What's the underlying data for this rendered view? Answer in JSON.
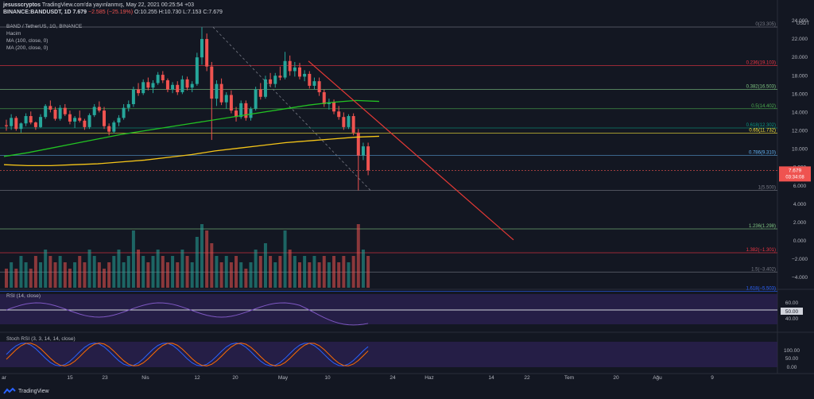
{
  "header": {
    "line1_user": "jesusscryptos",
    "line1_text": "TradingView.com'da yayınlanmış, May 22, 2021 00:25:54 +03",
    "symbol": "BINANCE:BANDUSDT, 1D",
    "last": "7.679",
    "change": "−2.585 (−25.19%)",
    "ohlc": "O:10.255 H:10.730 L:7.153 C:7.679"
  },
  "legend": {
    "pair": "BAND / TetherUS, 1G, BINANCE",
    "volume": "Hacim",
    "ma100": "MA (100, close, 0)",
    "ma200": "MA (200, close, 0)"
  },
  "price_axis": {
    "currency": "USDT",
    "ticks": [
      "24.000",
      "22.000",
      "20.000",
      "18.000",
      "16.000",
      "14.000",
      "12.000",
      "10.000",
      "8.000",
      "6.000",
      "4.000",
      "2.000",
      "0.000",
      "−2.000",
      "−4.000"
    ],
    "last_price_label": "7.679",
    "countdown": "03:34:08"
  },
  "fib_labels": [
    {
      "text": "0(23.305)",
      "value": 23.305,
      "color": "#787b86"
    },
    {
      "text": "0.236(19.103)",
      "value": 19.103,
      "color": "#f23645"
    },
    {
      "text": "0.382(16.503)",
      "value": 16.503,
      "color": "#81c784"
    },
    {
      "text": "0.5(14.402)",
      "value": 14.402,
      "color": "#4caf50"
    },
    {
      "text": "0.618(12.302)",
      "value": 12.302,
      "color": "#089981"
    },
    {
      "text": "0.65(11.732)",
      "value": 11.732,
      "color": "#ffeb3b"
    },
    {
      "text": "0.786(9.310)",
      "value": 9.31,
      "color": "#64b5f6"
    },
    {
      "text": "1(5.500)",
      "value": 5.5,
      "color": "#787b86"
    },
    {
      "text": "1.236(1.298)",
      "value": 1.298,
      "color": "#81c784"
    },
    {
      "text": "1.382(−1.301)",
      "value": -1.301,
      "color": "#f23645"
    },
    {
      "text": "1.5(−3.402)",
      "value": -3.402,
      "color": "#787b86"
    },
    {
      "text": "1.618(−5.503)",
      "value": -5.503,
      "color": "#2962ff"
    }
  ],
  "rsi": {
    "label": "RSI (14, close)",
    "ticks": [
      "60.00",
      "40.00"
    ],
    "current": "50.00"
  },
  "stoch": {
    "label": "Stoch RSI (3, 3, 14, 14, close)",
    "ticks": [
      "100.00",
      "50.00",
      "0.00"
    ]
  },
  "time_axis": [
    "ar",
    "15",
    "23",
    "Nis",
    "12",
    "20",
    "May",
    "10",
    "24",
    "Haz",
    "14",
    "22",
    "Tem",
    "20",
    "Ağu",
    "9"
  ],
  "footer": {
    "brand": "TradingView"
  },
  "colors": {
    "bg": "#131722",
    "up": "#26a69a",
    "down": "#ef5350",
    "ma100": "#22c322",
    "ma200": "#f5c518",
    "trendline": "#e53935",
    "rsi_line": "#7e57c2",
    "rsi_band": "#2a2150"
  },
  "chart_data": {
    "type": "candlestick",
    "title": "BAND / TetherUS, 1G, BINANCE",
    "ylim": [
      -5.5,
      24
    ],
    "candles": [
      [
        12.6,
        13.2,
        12.0,
        12.5
      ],
      [
        12.5,
        13.8,
        12.1,
        13.4
      ],
      [
        13.4,
        13.6,
        12.0,
        12.2
      ],
      [
        12.2,
        12.9,
        11.8,
        12.8
      ],
      [
        12.8,
        13.9,
        12.5,
        13.6
      ],
      [
        13.6,
        14.1,
        12.7,
        12.9
      ],
      [
        12.9,
        13.0,
        12.1,
        12.4
      ],
      [
        12.4,
        13.8,
        12.3,
        13.5
      ],
      [
        13.5,
        14.9,
        13.3,
        14.7
      ],
      [
        14.7,
        15.3,
        14.0,
        14.3
      ],
      [
        14.3,
        14.6,
        13.1,
        13.3
      ],
      [
        13.3,
        14.8,
        13.1,
        14.5
      ],
      [
        14.5,
        14.9,
        13.6,
        13.8
      ],
      [
        13.8,
        14.2,
        12.7,
        13.0
      ],
      [
        13.0,
        13.6,
        12.3,
        13.4
      ],
      [
        13.4,
        14.2,
        12.9,
        13.1
      ],
      [
        13.1,
        13.3,
        12.1,
        12.4
      ],
      [
        12.4,
        13.9,
        12.2,
        13.7
      ],
      [
        13.7,
        14.9,
        13.5,
        14.6
      ],
      [
        14.6,
        15.2,
        14.0,
        14.2
      ],
      [
        14.2,
        14.6,
        12.2,
        12.5
      ],
      [
        12.5,
        12.8,
        11.5,
        11.9
      ],
      [
        11.9,
        13.1,
        11.7,
        12.9
      ],
      [
        12.9,
        13.7,
        12.5,
        13.4
      ],
      [
        13.4,
        14.9,
        13.2,
        14.5
      ],
      [
        14.5,
        15.3,
        14.1,
        14.9
      ],
      [
        14.9,
        16.8,
        14.6,
        16.5
      ],
      [
        16.5,
        17.2,
        15.8,
        16.1
      ],
      [
        16.1,
        17.6,
        15.9,
        17.3
      ],
      [
        17.3,
        17.8,
        16.4,
        16.7
      ],
      [
        16.7,
        17.5,
        16.1,
        17.2
      ],
      [
        17.2,
        18.4,
        17.0,
        18.1
      ],
      [
        18.1,
        18.5,
        17.2,
        17.5
      ],
      [
        17.5,
        17.7,
        16.2,
        16.5
      ],
      [
        16.5,
        17.3,
        16.1,
        17.0
      ],
      [
        17.0,
        17.4,
        15.9,
        16.2
      ],
      [
        16.2,
        18.0,
        16.0,
        17.6
      ],
      [
        17.6,
        17.9,
        16.4,
        16.7
      ],
      [
        16.7,
        17.4,
        16.2,
        17.1
      ],
      [
        17.1,
        20.5,
        16.9,
        20.0
      ],
      [
        20.0,
        23.3,
        19.2,
        22.0
      ],
      [
        22.0,
        22.6,
        18.5,
        19.0
      ],
      [
        19.0,
        19.5,
        11.0,
        15.5
      ],
      [
        15.5,
        17.5,
        14.7,
        17.1
      ],
      [
        17.1,
        17.7,
        14.8,
        15.1
      ],
      [
        15.1,
        16.2,
        14.4,
        15.9
      ],
      [
        15.9,
        16.4,
        13.9,
        14.2
      ],
      [
        14.2,
        14.6,
        13.0,
        13.5
      ],
      [
        13.5,
        15.3,
        13.3,
        15.0
      ],
      [
        15.0,
        15.3,
        13.1,
        13.4
      ],
      [
        13.4,
        14.6,
        13.1,
        14.4
      ],
      [
        14.4,
        16.8,
        14.2,
        16.5
      ],
      [
        16.5,
        17.2,
        15.4,
        15.7
      ],
      [
        15.7,
        18.0,
        15.5,
        17.6
      ],
      [
        17.6,
        18.3,
        16.8,
        17.1
      ],
      [
        17.1,
        18.3,
        16.7,
        18.0
      ],
      [
        18.0,
        19.0,
        17.5,
        17.8
      ],
      [
        17.8,
        20.6,
        17.6,
        19.6
      ],
      [
        19.6,
        20.2,
        18.0,
        18.5
      ],
      [
        18.5,
        19.5,
        17.9,
        18.9
      ],
      [
        18.9,
        19.4,
        17.6,
        17.9
      ],
      [
        17.9,
        18.6,
        17.4,
        18.2
      ],
      [
        18.2,
        18.5,
        16.6,
        16.9
      ],
      [
        16.9,
        17.8,
        16.5,
        17.4
      ],
      [
        17.4,
        17.8,
        15.8,
        16.2
      ],
      [
        16.2,
        16.5,
        14.6,
        14.9
      ],
      [
        14.9,
        15.5,
        14.3,
        15.1
      ],
      [
        15.1,
        15.4,
        13.8,
        14.1
      ],
      [
        14.1,
        14.7,
        13.2,
        13.5
      ],
      [
        13.5,
        14.0,
        12.1,
        12.4
      ],
      [
        12.4,
        13.8,
        12.2,
        13.6
      ],
      [
        13.6,
        13.9,
        11.5,
        11.8
      ],
      [
        11.8,
        12.2,
        5.5,
        9.3
      ],
      [
        9.3,
        10.7,
        8.8,
        10.3
      ],
      [
        10.3,
        10.7,
        7.15,
        7.68
      ]
    ],
    "ma100": [
      9.2,
      9.6,
      10.1,
      10.6,
      11.1,
      11.6,
      12.0,
      12.4,
      12.8,
      13.2,
      13.6,
      14.0,
      14.4,
      14.8,
      15.1,
      15.3,
      15.2
    ],
    "ma200": [
      8.3,
      8.2,
      8.2,
      8.3,
      8.4,
      8.6,
      8.8,
      9.1,
      9.4,
      9.8,
      10.1,
      10.4,
      10.7,
      10.9,
      11.1,
      11.3,
      11.4
    ],
    "trendline": [
      [
        19.6,
        "start"
      ],
      [
        1.0,
        "end"
      ]
    ],
    "volume": [
      0.3,
      0.4,
      0.3,
      0.5,
      0.4,
      0.3,
      0.5,
      0.4,
      0.6,
      0.5,
      0.4,
      0.5,
      0.4,
      0.3,
      0.4,
      0.5,
      0.4,
      0.6,
      0.5,
      0.4,
      0.3,
      0.4,
      0.5,
      0.6,
      0.4,
      0.5,
      0.9,
      0.6,
      0.5,
      0.4,
      0.5,
      0.6,
      0.5,
      0.4,
      0.5,
      0.4,
      0.6,
      0.5,
      0.4,
      0.8,
      1.0,
      0.9,
      0.7,
      0.5,
      0.4,
      0.5,
      0.4,
      0.5,
      0.4,
      0.3,
      0.4,
      0.6,
      0.5,
      0.7,
      0.5,
      0.4,
      0.5,
      0.9,
      0.6,
      0.5,
      0.4,
      0.5,
      0.4,
      0.5,
      0.4,
      0.5,
      0.4,
      0.5,
      0.4,
      0.5,
      0.4,
      0.5,
      1.0,
      0.6,
      0.5
    ]
  }
}
